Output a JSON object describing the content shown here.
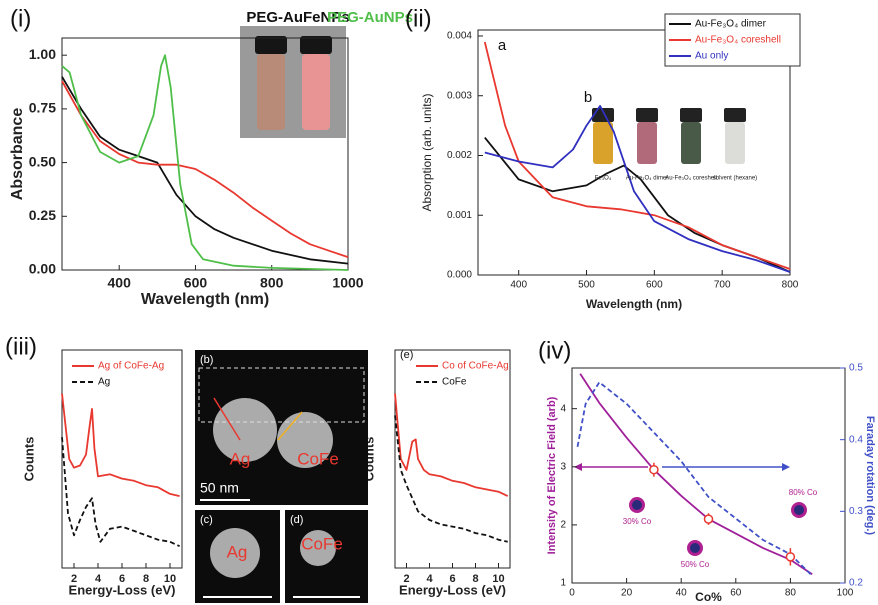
{
  "chart_data": [
    {
      "type": "line",
      "label": "(i)",
      "xlabel": "Wavelength (nm)",
      "ylabel": "Absorbance",
      "xlim": [
        250,
        1000
      ],
      "ylim": [
        0,
        1.08
      ],
      "xticks": [
        400,
        600,
        800,
        1000
      ],
      "yticks": [
        {
          "value": 0,
          "label": "0.00"
        },
        {
          "value": 0.25,
          "label": "0.25"
        },
        {
          "value": 0.5,
          "label": "0.50"
        },
        {
          "value": 0.75,
          "label": "0.75"
        },
        {
          "value": 1,
          "label": "1.00"
        }
      ],
      "annotations": [
        {
          "text": "PEG-AuFeNPs",
          "color": "#111111"
        },
        {
          "text": "PEG-AuNPs",
          "color": "#4fbf4a"
        }
      ],
      "series": [
        {
          "color": "#111111",
          "x": [
            250,
            300,
            350,
            400,
            450,
            500,
            550,
            600,
            650,
            700,
            800,
            900,
            1000
          ],
          "values": [
            0.9,
            0.75,
            0.62,
            0.56,
            0.53,
            0.5,
            0.35,
            0.25,
            0.19,
            0.15,
            0.09,
            0.05,
            0.03
          ]
        },
        {
          "color": "#e8382f",
          "x": [
            250,
            300,
            350,
            400,
            450,
            500,
            550,
            600,
            650,
            700,
            750,
            800,
            850,
            900,
            950,
            1000
          ],
          "values": [
            0.88,
            0.72,
            0.6,
            0.54,
            0.5,
            0.49,
            0.49,
            0.47,
            0.42,
            0.36,
            0.29,
            0.23,
            0.17,
            0.12,
            0.09,
            0.06
          ]
        },
        {
          "color": "#4fbf4a",
          "x": [
            250,
            270,
            300,
            350,
            400,
            450,
            490,
            510,
            520,
            535,
            560,
            590,
            620,
            700,
            800,
            1000
          ],
          "values": [
            0.95,
            0.92,
            0.72,
            0.55,
            0.5,
            0.53,
            0.72,
            0.95,
            1.0,
            0.85,
            0.4,
            0.12,
            0.05,
            0.02,
            0.01,
            0
          ]
        }
      ]
    },
    {
      "type": "line",
      "label": "(ii)",
      "xlabel": "Wavelength (nm)",
      "ylabel": "Absorption (arb. units)",
      "xlim": [
        340,
        800
      ],
      "ylim": [
        0,
        0.0041
      ],
      "xticks": [
        400,
        500,
        600,
        700,
        800
      ],
      "yticks": [
        {
          "value": 0,
          "label": "0.000"
        },
        {
          "value": 0.001,
          "label": "0.001"
        },
        {
          "value": 0.002,
          "label": "0.002"
        },
        {
          "value": 0.003,
          "label": "0.003"
        },
        {
          "value": 0.004,
          "label": "0.004"
        }
      ],
      "annotations": [
        {
          "text": "a",
          "color": "#111111"
        },
        {
          "text": "b",
          "color": "#111111"
        }
      ],
      "photo_labels": [
        "Fe₃O₄",
        "Au-Fe₃O₄ dimer",
        "Au-Fe₃O₄ coreshell",
        "solvent (hexane)"
      ],
      "series": [
        {
          "name": "Au-Fe₃O₄ dimer",
          "color": "#111111",
          "x": [
            350,
            400,
            450,
            500,
            530,
            555,
            580,
            620,
            660,
            700,
            750,
            800
          ],
          "values": [
            0.0023,
            0.0016,
            0.0014,
            0.0015,
            0.0017,
            0.00183,
            0.0016,
            0.001,
            0.0007,
            0.0005,
            0.0003,
            5e-05
          ]
        },
        {
          "name": "Au-Fe₃O₄ coreshell",
          "color": "#e8382f",
          "x": [
            350,
            380,
            400,
            450,
            500,
            550,
            600,
            650,
            700,
            750,
            800
          ],
          "values": [
            0.0039,
            0.0025,
            0.0019,
            0.0013,
            0.00115,
            0.0011,
            0.001,
            0.0008,
            0.0005,
            0.0003,
            0.0001
          ]
        },
        {
          "name": "Au only",
          "color": "#3030c0",
          "x": [
            350,
            400,
            450,
            480,
            500,
            520,
            540,
            570,
            600,
            650,
            700,
            750,
            800
          ],
          "values": [
            0.00205,
            0.0019,
            0.0018,
            0.0021,
            0.0025,
            0.00283,
            0.0024,
            0.0014,
            0.0009,
            0.0006,
            0.0004,
            0.00025,
            5e-05
          ]
        }
      ]
    },
    {
      "type": "line",
      "label": "(iii)",
      "xlabel": "Energy-Loss (eV)",
      "ylabel": "Counts",
      "xlim": [
        1,
        11
      ],
      "ylim": [
        0,
        10
      ],
      "xticks": [
        2,
        4,
        6,
        8,
        10
      ],
      "series": [
        {
          "name": "Ag of CoFe-Ag",
          "color": "#e8382f",
          "x": [
            1,
            1.3,
            1.6,
            2,
            2.5,
            3,
            3.3,
            3.5,
            3.7,
            4,
            5,
            6,
            7,
            8,
            9,
            10,
            10.8
          ],
          "values": [
            8,
            6.5,
            5,
            4.6,
            4.7,
            5.2,
            6.5,
            7.3,
            5.5,
            4.2,
            4.3,
            4.1,
            4,
            3.8,
            3.7,
            3.4,
            3.3
          ]
        },
        {
          "name": "Ag",
          "color": "#111111",
          "dash": true,
          "x": [
            1,
            1.5,
            2,
            2.5,
            3,
            3.5,
            3.8,
            4.2,
            5,
            6,
            7,
            8,
            9,
            10,
            10.8
          ],
          "values": [
            6,
            2.5,
            1.5,
            2.2,
            2.8,
            3.2,
            2,
            1.2,
            1.8,
            1.9,
            1.7,
            1.5,
            1.3,
            1.2,
            1
          ]
        }
      ]
    },
    {
      "type": "line",
      "label": "(e)",
      "xlabel": "Energy-Loss (eV)",
      "ylabel": "Counts",
      "xlim": [
        1,
        11
      ],
      "ylim": [
        0,
        10
      ],
      "xticks": [
        2,
        4,
        6,
        8,
        10
      ],
      "series": [
        {
          "name": "Co of CoFe-Ag",
          "color": "#e8382f",
          "x": [
            1,
            1.5,
            2,
            2.5,
            2.8,
            3,
            3.5,
            4,
            5,
            6,
            7,
            8,
            9,
            10,
            10.8
          ],
          "values": [
            8,
            5,
            4.5,
            5.8,
            5.9,
            5,
            4.5,
            4.3,
            4.2,
            4,
            3.9,
            3.7,
            3.6,
            3.5,
            3.3
          ]
        },
        {
          "name": "CoFe",
          "color": "#111111",
          "dash": true,
          "x": [
            1,
            1.5,
            2,
            2.5,
            3,
            4,
            5,
            6,
            7,
            8,
            9,
            10,
            10.8
          ],
          "values": [
            7,
            4.5,
            3.8,
            3.2,
            2.6,
            2.2,
            2,
            1.9,
            1.8,
            1.6,
            1.5,
            1.3,
            1.2
          ]
        }
      ]
    },
    {
      "type": "line",
      "label": "(iv)",
      "xlabel": "Co%",
      "ylabel": "Intensity of Electric Field (arb)",
      "y2label": "Faraday rotation (deg.)",
      "xlim": [
        0,
        100
      ],
      "ylim": [
        1,
        4.7
      ],
      "y2lim": [
        0.2,
        0.5
      ],
      "xticks": [
        0,
        20,
        40,
        60,
        80,
        100
      ],
      "yticks": [
        1,
        2,
        3,
        4
      ],
      "y2ticks": [
        0.2,
        0.3,
        0.4,
        0.5
      ],
      "annotations": [
        {
          "text": "30% Co",
          "color": "#b02090"
        },
        {
          "text": "50% Co",
          "color": "#b02090"
        },
        {
          "text": "80% Co",
          "color": "#b02090"
        }
      ],
      "series": [
        {
          "color": "#a0209a",
          "x": [
            3,
            10,
            20,
            30,
            40,
            50,
            60,
            70,
            80,
            88
          ],
          "values": [
            4.6,
            4.1,
            3.5,
            2.95,
            2.5,
            2.1,
            1.85,
            1.6,
            1.4,
            1.15
          ]
        },
        {
          "color": "#4050c8",
          "dash": true,
          "axis": "y2",
          "x": [
            2,
            5,
            10,
            20,
            30,
            40,
            50,
            60,
            70,
            80,
            88
          ],
          "values": [
            0.39,
            0.45,
            0.48,
            0.45,
            0.41,
            0.37,
            0.32,
            0.29,
            0.26,
            0.24,
            0.21
          ]
        }
      ],
      "points": {
        "color": "#e8382f",
        "x": [
          30,
          50,
          80
        ],
        "values": [
          2.95,
          2.1,
          1.45
        ],
        "errors": [
          0.12,
          0.1,
          0.15
        ]
      }
    }
  ],
  "images": [
    {
      "label": "(b)",
      "texts": [
        "Ag",
        "CoFe"
      ],
      "scale_bar": "50 nm"
    },
    {
      "label": "(c)",
      "texts": [
        "Ag"
      ]
    },
    {
      "label": "(d)",
      "texts": [
        "CoFe"
      ]
    }
  ]
}
